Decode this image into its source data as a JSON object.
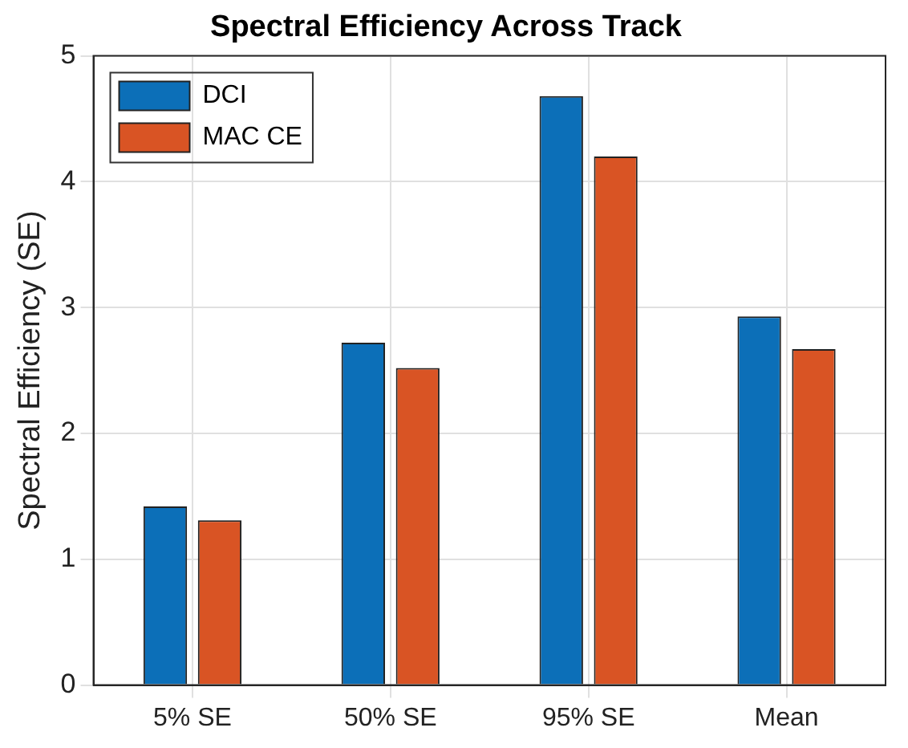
{
  "chart_data": {
    "type": "bar",
    "title": "Spectral Efficiency Across Track",
    "ylabel": "Spectral Efficiency (SE)",
    "categories": [
      "5% SE",
      "50% SE",
      "95% SE",
      "Mean"
    ],
    "series": [
      {
        "name": "DCI",
        "color": "#0c6fb8",
        "values": [
          1.42,
          2.72,
          4.68,
          2.93
        ]
      },
      {
        "name": "MAC CE",
        "color": "#d95424",
        "values": [
          1.31,
          2.52,
          4.2,
          2.67
        ]
      }
    ],
    "ylim": [
      0,
      5
    ],
    "yticks": [
      0,
      1,
      2,
      3,
      4,
      5
    ],
    "grid": true,
    "legend": "top left"
  }
}
